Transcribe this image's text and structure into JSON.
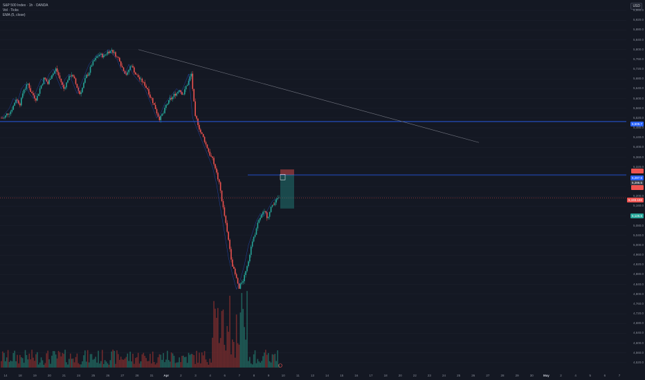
{
  "legend": {
    "symbol": "S&P 500 Index · 1h · OANDA",
    "vol": "Vol · Ticks",
    "ema": "EMA (5, close)"
  },
  "currency_button": "USD",
  "price_labels": {
    "blue_level_1": "5,505.7",
    "blue_level_2": "5,287.6",
    "blue_level_2b": "5,286.5",
    "current_red": "5,193.192",
    "current_teal": "5,125.5"
  },
  "colors": {
    "background": "#141823",
    "bull": "#26a69a",
    "bear": "#ef5350",
    "ema": "#2962ff",
    "level": "#2962ff"
  },
  "chart_data": {
    "type": "candlestick",
    "ylim": [
      4500,
      5980
    ],
    "y_ticks": [
      "5,960.0",
      "5,920.0",
      "5,880.0",
      "5,840.0",
      "5,800.0",
      "5,760.0",
      "5,720.0",
      "5,680.0",
      "5,640.0",
      "5,600.0",
      "5,560.0",
      "5,520.0",
      "5,480.0",
      "5,440.0",
      "5,400.0",
      "5,360.0",
      "5,320.0",
      "5,280.0",
      "5,240.0",
      "5,200.0",
      "5,160.0",
      "5,120.0",
      "5,080.0",
      "5,040.0",
      "5,000.0",
      "4,960.0",
      "4,920.0",
      "4,880.0",
      "4,840.0",
      "4,800.0",
      "4,760.0",
      "4,720.0",
      "4,680.0",
      "4,640.0",
      "4,600.0",
      "4,560.0",
      "4,520.0"
    ],
    "x_ticks": [
      "14",
      "18",
      "19",
      "20",
      "21",
      "24",
      "25",
      "26",
      "27",
      "28",
      "31",
      "Apr",
      "2",
      "3",
      "4",
      "6",
      "7",
      "8",
      "9",
      "10",
      "11",
      "13",
      "14",
      "15",
      "16",
      "17",
      "18",
      "20",
      "22",
      "23",
      "24",
      "25",
      "26",
      "27",
      "28",
      "29",
      "30",
      "May",
      "2",
      "4",
      "5",
      "6",
      "7"
    ],
    "levels": [
      5505.7,
      5287.6
    ],
    "trendline": {
      "from": [
        5800,
        "Mar 26"
      ],
      "to": [
        5420,
        "Apr 25"
      ]
    },
    "position": {
      "entry": 5287.6,
      "stop": 5310,
      "target": 5150
    },
    "price_path": [
      5520,
      5540,
      5560,
      5600,
      5580,
      5640,
      5660,
      5620,
      5600,
      5640,
      5680,
      5660,
      5700,
      5720,
      5680,
      5640,
      5680,
      5700,
      5660,
      5620,
      5660,
      5700,
      5740,
      5760,
      5780,
      5770,
      5790,
      5800,
      5780,
      5760,
      5720,
      5700,
      5740,
      5700,
      5680,
      5660,
      5640,
      5600,
      5560,
      5520,
      5540,
      5580,
      5600,
      5620,
      5640,
      5620,
      5660,
      5700,
      5520,
      5480,
      5440,
      5400,
      5360,
      5320,
      5250,
      5150,
      5050,
      4950,
      4880,
      4820,
      4860,
      4920,
      5000,
      5050,
      5100,
      5130,
      5120,
      5150,
      5180,
      5193
    ]
  }
}
